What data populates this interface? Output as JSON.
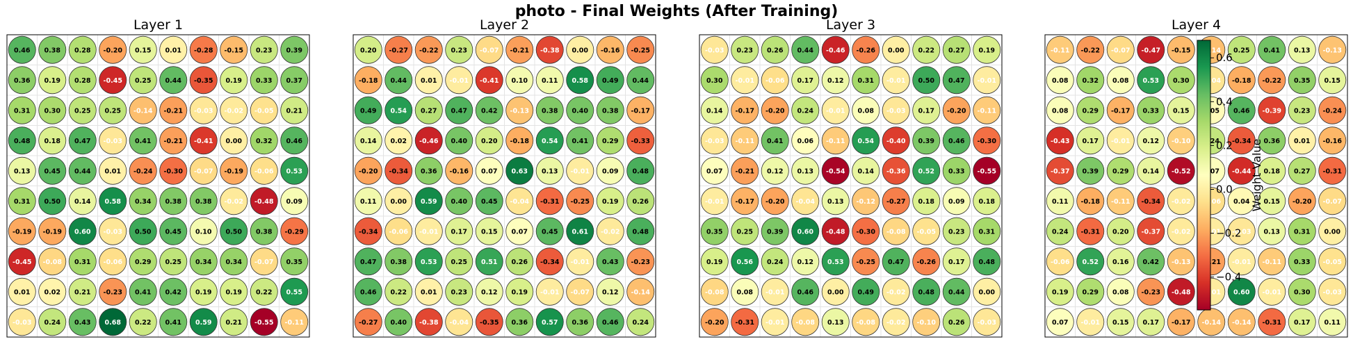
{
  "title": "photo - Final Weights (After Training)",
  "chart_data": [
    {
      "type": "heatmap",
      "title": "Layer 1",
      "rows": 10,
      "cols": 10,
      "colormap": "RdYlGn",
      "vmin": -0.55,
      "vmax": 0.68,
      "grid": true,
      "values": [
        [
          0.46,
          0.38,
          0.28,
          -0.2,
          0.15,
          0.01,
          -0.28,
          -0.15,
          0.23,
          0.39
        ],
        [
          0.36,
          0.19,
          0.28,
          -0.45,
          0.25,
          0.44,
          -0.35,
          0.19,
          0.33,
          0.37
        ],
        [
          0.31,
          0.3,
          0.25,
          0.25,
          -0.14,
          -0.21,
          -0.03,
          -0.02,
          -0.05,
          0.21
        ],
        [
          0.48,
          0.18,
          0.47,
          -0.03,
          0.41,
          -0.21,
          -0.41,
          0.0,
          0.32,
          0.46
        ],
        [
          0.13,
          0.45,
          0.44,
          0.01,
          -0.24,
          -0.3,
          -0.07,
          -0.19,
          -0.06,
          0.53
        ],
        [
          0.31,
          0.5,
          0.14,
          0.58,
          0.34,
          0.38,
          0.38,
          -0.02,
          -0.48,
          0.09
        ],
        [
          -0.19,
          -0.19,
          0.6,
          -0.03,
          0.5,
          0.45,
          0.1,
          0.5,
          0.38,
          -0.29
        ],
        [
          -0.45,
          -0.08,
          0.31,
          -0.06,
          0.29,
          0.25,
          0.34,
          0.34,
          -0.07,
          0.35
        ],
        [
          0.01,
          0.02,
          0.21,
          -0.23,
          0.41,
          0.42,
          0.19,
          0.19,
          0.22,
          0.55
        ],
        [
          -0.03,
          0.24,
          0.43,
          0.68,
          0.22,
          0.41,
          0.59,
          0.21,
          -0.55,
          -0.11
        ]
      ]
    },
    {
      "type": "heatmap",
      "title": "Layer 2",
      "rows": 10,
      "cols": 10,
      "colormap": "RdYlGn",
      "vmin": -0.55,
      "vmax": 0.68,
      "grid": true,
      "values": [
        [
          0.2,
          -0.27,
          -0.22,
          0.23,
          -0.07,
          -0.21,
          -0.38,
          0.0,
          -0.16,
          -0.25
        ],
        [
          -0.18,
          0.44,
          0.01,
          -0.01,
          -0.41,
          0.1,
          0.11,
          0.58,
          0.49,
          0.44
        ],
        [
          0.49,
          0.54,
          0.27,
          0.47,
          0.42,
          -0.13,
          0.38,
          0.4,
          0.38,
          -0.17
        ],
        [
          0.14,
          0.02,
          -0.46,
          0.4,
          0.2,
          -0.18,
          0.54,
          0.41,
          0.29,
          -0.33
        ],
        [
          -0.2,
          -0.34,
          0.36,
          -0.16,
          0.07,
          0.63,
          0.13,
          -0.01,
          0.09,
          0.48
        ],
        [
          0.11,
          0.0,
          0.59,
          0.4,
          0.45,
          -0.04,
          -0.31,
          -0.25,
          0.19,
          0.26
        ],
        [
          -0.34,
          -0.06,
          -0.01,
          0.17,
          0.15,
          0.07,
          0.45,
          0.61,
          -0.02,
          0.48
        ],
        [
          0.47,
          0.38,
          0.53,
          0.25,
          0.51,
          0.26,
          -0.34,
          -0.01,
          0.43,
          -0.23
        ],
        [
          0.46,
          0.22,
          0.01,
          0.23,
          0.12,
          0.19,
          -0.01,
          -0.07,
          0.12,
          -0.14
        ],
        [
          -0.27,
          0.4,
          -0.38,
          -0.04,
          -0.35,
          0.36,
          0.57,
          0.36,
          0.46,
          0.24
        ]
      ]
    },
    {
      "type": "heatmap",
      "title": "Layer 3",
      "rows": 10,
      "cols": 10,
      "colormap": "RdYlGn",
      "vmin": -0.55,
      "vmax": 0.68,
      "grid": true,
      "values": [
        [
          -0.03,
          0.23,
          0.26,
          0.44,
          -0.46,
          -0.26,
          -0.0,
          0.22,
          0.27,
          0.19
        ],
        [
          0.3,
          -0.01,
          -0.06,
          0.17,
          0.12,
          0.31,
          -0.01,
          0.5,
          0.47,
          -0.01
        ],
        [
          0.14,
          -0.17,
          -0.2,
          0.24,
          -0.01,
          0.08,
          -0.03,
          0.17,
          -0.2,
          -0.11
        ],
        [
          -0.03,
          -0.11,
          0.41,
          0.06,
          -0.11,
          0.54,
          -0.4,
          0.39,
          0.46,
          -0.3
        ],
        [
          0.07,
          -0.21,
          0.12,
          0.13,
          -0.54,
          0.14,
          -0.36,
          0.52,
          0.33,
          -0.55
        ],
        [
          -0.01,
          -0.17,
          -0.2,
          -0.04,
          0.13,
          -0.12,
          -0.27,
          0.18,
          0.09,
          0.18
        ],
        [
          0.35,
          0.25,
          0.39,
          0.6,
          -0.48,
          -0.3,
          -0.08,
          -0.05,
          0.23,
          0.31
        ],
        [
          0.19,
          0.56,
          0.24,
          0.12,
          0.53,
          -0.25,
          0.47,
          -0.26,
          0.17,
          0.48
        ],
        [
          -0.08,
          0.08,
          -0.01,
          0.46,
          -0.0,
          0.49,
          -0.02,
          0.48,
          0.44,
          -0.0
        ],
        [
          -0.2,
          -0.31,
          -0.01,
          -0.08,
          0.13,
          -0.08,
          -0.02,
          -0.1,
          0.26,
          -0.03
        ]
      ]
    },
    {
      "type": "heatmap",
      "title": "Layer 4",
      "rows": 10,
      "cols": 10,
      "colormap": "RdYlGn",
      "vmin": -0.55,
      "vmax": 0.68,
      "grid": true,
      "values": [
        [
          -0.11,
          -0.22,
          -0.07,
          -0.47,
          -0.15,
          -0.14,
          0.25,
          0.41,
          0.13,
          -0.13
        ],
        [
          0.08,
          0.32,
          0.08,
          0.53,
          0.3,
          -0.04,
          -0.18,
          -0.22,
          0.35,
          0.15
        ],
        [
          0.08,
          0.29,
          -0.17,
          0.33,
          0.15,
          0.05,
          0.46,
          -0.39,
          0.23,
          -0.24
        ],
        [
          -0.43,
          0.17,
          -0.01,
          0.12,
          -0.1,
          0.24,
          -0.34,
          0.36,
          0.01,
          -0.16
        ],
        [
          -0.37,
          0.39,
          0.29,
          0.14,
          -0.52,
          0.07,
          -0.44,
          0.18,
          0.27,
          -0.31
        ],
        [
          0.11,
          -0.18,
          -0.11,
          -0.34,
          -0.02,
          -0.06,
          0.04,
          0.15,
          -0.2,
          -0.07
        ],
        [
          0.24,
          -0.31,
          0.2,
          -0.37,
          -0.02,
          -0.01,
          -0.03,
          0.13,
          0.31,
          0.0
        ],
        [
          -0.06,
          0.52,
          0.16,
          0.42,
          -0.13,
          -0.21,
          -0.01,
          -0.11,
          0.33,
          -0.05
        ],
        [
          0.19,
          0.29,
          0.08,
          -0.23,
          -0.48,
          -0.01,
          0.6,
          -0.01,
          0.3,
          -0.03
        ],
        [
          0.07,
          -0.01,
          0.15,
          0.17,
          -0.17,
          -0.14,
          -0.14,
          -0.31,
          0.17,
          0.11
        ]
      ]
    }
  ],
  "colorbar": {
    "label": "Weight Value",
    "ticks": [
      "−0.4",
      "−0.2",
      "0.0",
      "0.2",
      "0.4",
      "0.6"
    ],
    "tick_values": [
      -0.4,
      -0.2,
      0.0,
      0.2,
      0.4,
      0.6
    ],
    "vmin": -0.55,
    "vmax": 0.68
  },
  "colors": {
    "cmap_stops": [
      "#a50026",
      "#d73027",
      "#f46d43",
      "#fdae61",
      "#fee08b",
      "#ffffbf",
      "#d9ef8b",
      "#a6d96a",
      "#66bd63",
      "#1a9850",
      "#006837"
    ]
  }
}
